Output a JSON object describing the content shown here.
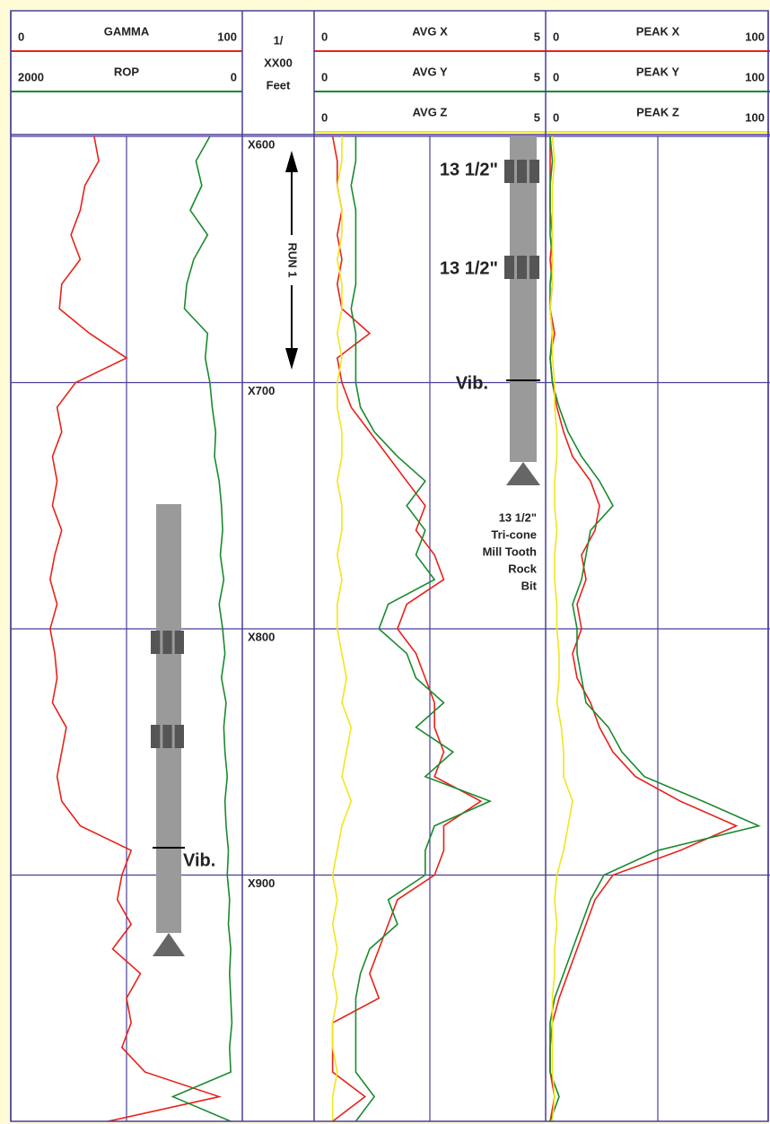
{
  "chart_data": {
    "type": "line",
    "y": [
      600,
      610,
      620,
      630,
      640,
      650,
      660,
      670,
      680,
      690,
      700,
      710,
      720,
      730,
      740,
      750,
      760,
      770,
      780,
      790,
      800,
      810,
      820,
      830,
      840,
      850,
      860,
      870,
      880,
      890,
      900,
      910,
      920,
      930,
      940,
      950,
      960,
      970,
      980,
      990,
      1000
    ],
    "ylim": [
      600,
      1000
    ],
    "yticks": [
      {
        "value": 600,
        "label": "X600"
      },
      {
        "value": 700,
        "label": "X700"
      },
      {
        "value": 800,
        "label": "X800"
      },
      {
        "value": 900,
        "label": "X900"
      }
    ],
    "depth_header": [
      "1/",
      "XX00",
      "Feet"
    ],
    "tracks": [
      {
        "series": [
          {
            "name": "GAMMA",
            "color": "#e8221b",
            "xlim": [
              0,
              100
            ],
            "values": [
              36,
              38,
              32,
              30,
              26,
              30,
              22,
              21,
              34,
              50,
              28,
              20,
              22,
              18,
              20,
              18,
              22,
              19,
              17,
              20,
              17,
              19,
              20,
              18,
              24,
              22,
              20,
              22,
              30,
              52,
              48,
              46,
              52,
              44,
              56,
              50,
              52,
              48,
              58,
              90,
              42
            ]
          },
          {
            "name": "ROP",
            "color": "#1a8a2e",
            "xlim": [
              2000,
              0
            ],
            "values": [
              280,
              400,
              350,
              450,
              300,
              420,
              480,
              500,
              300,
              320,
              280,
              260,
              230,
              240,
              200,
              180,
              170,
              190,
              160,
              200,
              170,
              150,
              180,
              140,
              160,
              150,
              130,
              150,
              140,
              120,
              130,
              110,
              120,
              100,
              110,
              100,
              90,
              110,
              100,
              600,
              100
            ]
          }
        ]
      },
      {
        "series": [
          {
            "name": "AVG X",
            "color": "#e8221b",
            "xlim": [
              0,
              5
            ],
            "values": [
              0.4,
              0.5,
              0.5,
              0.6,
              0.5,
              0.6,
              0.5,
              0.6,
              1.2,
              0.5,
              0.6,
              0.8,
              1.2,
              1.6,
              2.0,
              2.4,
              2.2,
              2.6,
              2.8,
              2.0,
              1.8,
              2.2,
              2.4,
              2.6,
              2.6,
              2.8,
              2.6,
              3.6,
              2.8,
              2.8,
              2.6,
              1.8,
              1.6,
              1.4,
              1.2,
              1.4,
              0.4,
              0.4,
              0.4,
              1.1,
              0.4
            ]
          },
          {
            "name": "AVG Y",
            "color": "#1a8a2e",
            "xlim": [
              0,
              5
            ],
            "values": [
              0.9,
              0.9,
              0.8,
              0.9,
              0.9,
              0.9,
              0.9,
              0.8,
              0.9,
              0.9,
              0.9,
              1.0,
              1.3,
              1.8,
              2.4,
              2.0,
              2.4,
              2.2,
              2.6,
              1.6,
              1.4,
              2.0,
              2.2,
              2.8,
              2.2,
              3.0,
              2.4,
              3.8,
              2.6,
              2.4,
              2.4,
              1.6,
              1.8,
              1.2,
              1.0,
              0.9,
              0.9,
              0.9,
              0.9,
              1.3,
              0.9
            ]
          },
          {
            "name": "AVG Z",
            "color": "#f2e61b",
            "xlim": [
              0,
              5
            ],
            "values": [
              0.6,
              0.6,
              0.5,
              0.6,
              0.6,
              0.5,
              0.6,
              0.6,
              0.5,
              0.6,
              0.5,
              0.5,
              0.6,
              0.6,
              0.5,
              0.6,
              0.6,
              0.5,
              0.6,
              0.5,
              0.5,
              0.6,
              0.7,
              0.6,
              0.8,
              0.7,
              0.6,
              0.8,
              0.6,
              0.5,
              0.4,
              0.5,
              0.4,
              0.5,
              0.4,
              0.5,
              0.4,
              0.4,
              0.5,
              0.4,
              0.4
            ]
          }
        ]
      },
      {
        "series": [
          {
            "name": "PEAK X",
            "color": "#e8221b",
            "xlim": [
              0,
              100
            ],
            "values": [
              2,
              2,
              2,
              2,
              3,
              2,
              3,
              2,
              4,
              2,
              3,
              5,
              8,
              12,
              20,
              24,
              22,
              16,
              18,
              14,
              16,
              12,
              14,
              20,
              24,
              30,
              40,
              60,
              85,
              60,
              30,
              22,
              18,
              14,
              10,
              6,
              3,
              2,
              2,
              4,
              2
            ]
          },
          {
            "name": "PEAK Y",
            "color": "#1a8a2e",
            "xlim": [
              0,
              100
            ],
            "values": [
              2,
              3,
              2,
              2,
              2,
              3,
              2,
              2,
              3,
              2,
              3,
              6,
              10,
              16,
              24,
              30,
              20,
              18,
              16,
              12,
              14,
              14,
              16,
              18,
              28,
              34,
              44,
              70,
              95,
              50,
              26,
              20,
              16,
              12,
              8,
              4,
              2,
              2,
              2,
              6,
              2
            ]
          },
          {
            "name": "PEAK Z",
            "color": "#f2e61b",
            "xlim": [
              0,
              100
            ],
            "values": [
              3,
              4,
              3,
              3,
              3,
              3,
              3,
              2,
              3,
              3,
              4,
              4,
              5,
              5,
              4,
              4,
              5,
              4,
              4,
              5,
              5,
              6,
              6,
              5,
              7,
              8,
              8,
              12,
              10,
              8,
              5,
              4,
              5,
              4,
              4,
              3,
              3,
              3,
              3,
              4,
              3
            ]
          }
        ]
      }
    ]
  },
  "annotations": {
    "run": "RUN 1",
    "track1_vib": "Vib.",
    "track3_size_1": "13 1/2\"",
    "track3_size_2": "13 1/2\"",
    "track3_vib": "Vib.",
    "bit_description": [
      "13 1/2\"",
      "Tri-cone",
      "Mill Tooth",
      "Rock",
      "Bit"
    ]
  }
}
